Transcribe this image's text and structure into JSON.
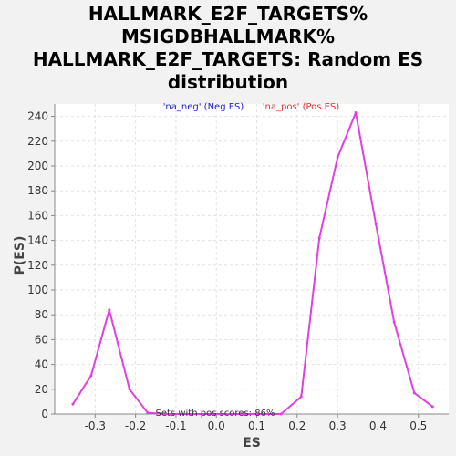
{
  "chart_data": {
    "type": "line",
    "title_lines": [
      "HALLMARK_E2F_TARGETS%",
      "MSIGDBHALLMARK%",
      "HALLMARK_E2F_TARGETS: Random ES",
      "distribution"
    ],
    "xlabel": "ES",
    "ylabel": "P(ES)",
    "xlim": [
      -0.4,
      0.575
    ],
    "ylim": [
      0,
      250
    ],
    "xticks": [
      -0.3,
      -0.2,
      -0.1,
      0.0,
      0.1,
      0.2,
      0.3,
      0.4,
      0.5
    ],
    "xtick_labels": [
      "-0.3",
      "-0.2",
      "-0.1",
      "0.0",
      "0.1",
      "0.2",
      "0.3",
      "0.4",
      "0.5"
    ],
    "yticks": [
      0,
      20,
      40,
      60,
      80,
      100,
      120,
      140,
      160,
      180,
      200,
      220,
      240
    ],
    "grid": true,
    "legend": [
      {
        "label": "'na_neg' (Neg ES)",
        "color": "#1a1ad6"
      },
      {
        "label": "'na_pos' (Pos ES)",
        "color": "#e03030"
      }
    ],
    "annotation": "Sets with pos scores: 86%",
    "series": [
      {
        "color": "#e040e0",
        "points": [
          [
            -0.355,
            8
          ],
          [
            -0.31,
            31
          ],
          [
            -0.265,
            84
          ],
          [
            -0.215,
            20
          ],
          [
            -0.17,
            1
          ],
          [
            -0.125,
            0
          ],
          [
            0.16,
            0
          ],
          [
            0.21,
            14
          ],
          [
            0.255,
            142
          ],
          [
            0.3,
            207
          ],
          [
            0.345,
            243
          ],
          [
            0.395,
            153
          ],
          [
            0.44,
            74
          ],
          [
            0.49,
            17
          ],
          [
            0.535,
            6
          ]
        ]
      }
    ]
  }
}
